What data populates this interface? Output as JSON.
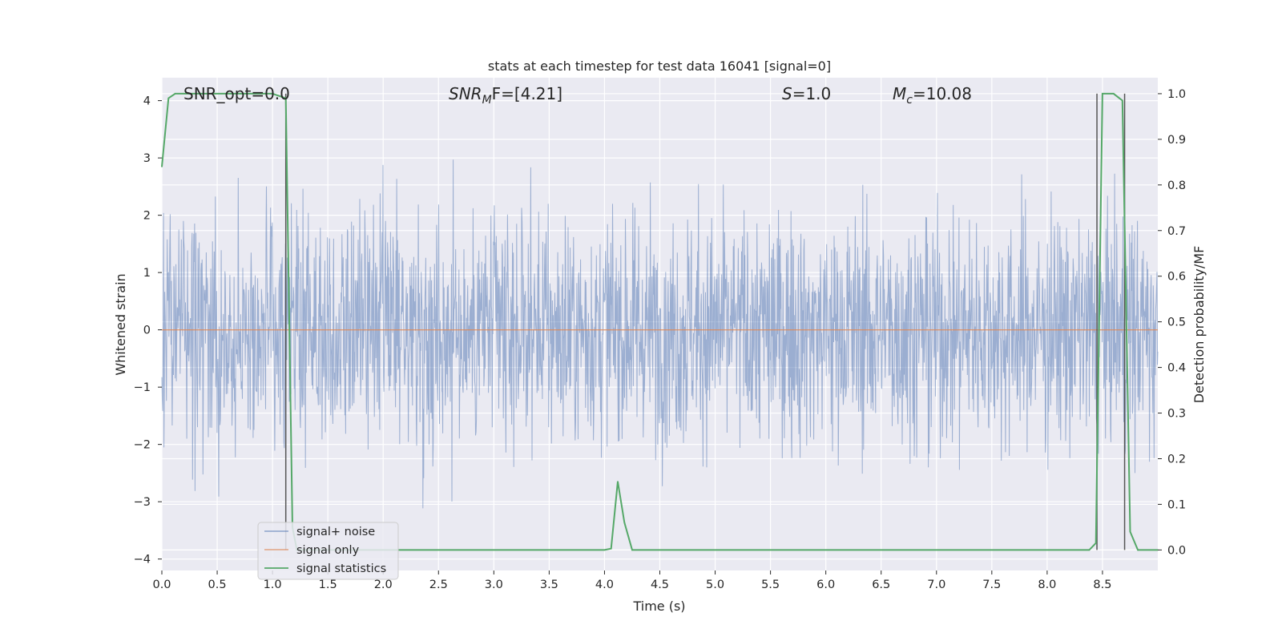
{
  "chart_data": {
    "type": "line",
    "title": "stats at each timestep for test data 16041 [signal=0]",
    "xlabel": "Time (s)",
    "ylabel": "Whitened strain",
    "y2label": "Detection probability/MF",
    "xlim": [
      0.0,
      9.0
    ],
    "ylim": [
      -4.2,
      4.4
    ],
    "y2lim": [
      -0.045,
      1.035
    ],
    "xticks": [
      "0.0",
      "0.5",
      "1.0",
      "1.5",
      "2.0",
      "2.5",
      "3.0",
      "3.5",
      "4.0",
      "4.5",
      "5.0",
      "5.5",
      "6.0",
      "6.5",
      "7.0",
      "7.5",
      "8.0",
      "8.5"
    ],
    "xtick_values": [
      0.0,
      0.5,
      1.0,
      1.5,
      2.0,
      2.5,
      3.0,
      3.5,
      4.0,
      4.5,
      5.0,
      5.5,
      6.0,
      6.5,
      7.0,
      7.5,
      8.0,
      8.5
    ],
    "yticks": [
      "−4",
      "−3",
      "−2",
      "−1",
      "0",
      "1",
      "2",
      "3",
      "4"
    ],
    "ytick_values": [
      -4,
      -3,
      -2,
      -1,
      0,
      1,
      2,
      3,
      4
    ],
    "y2ticks": [
      "0.0",
      "0.1",
      "0.2",
      "0.3",
      "0.4",
      "0.5",
      "0.6",
      "0.7",
      "0.8",
      "0.9",
      "1.0"
    ],
    "y2tick_values": [
      0.0,
      0.1,
      0.2,
      0.3,
      0.4,
      0.5,
      0.6,
      0.7,
      0.8,
      0.9,
      1.0
    ],
    "grid": true,
    "annotations": {
      "snr_opt": "SNR_opt=0.0",
      "snr_mf_main": "SNR",
      "snr_mf_sub": "M",
      "snr_mf_tail": "F=[4.21]",
      "s_main": "S",
      "s_tail": "=1.0",
      "mc_main": "M",
      "mc_sub": "c",
      "mc_tail": "=10.08"
    },
    "legend": {
      "position": "lower-left",
      "entries": [
        "signal+ noise",
        "signal only",
        "signal statistics"
      ]
    },
    "series": [
      {
        "name": "signal+ noise",
        "axis": "left",
        "color": "#4c72b0",
        "kind": "noise",
        "x_range": [
          0.0,
          9.0
        ],
        "y_range": [
          -3.65,
          4.0
        ]
      },
      {
        "name": "signal only",
        "axis": "left",
        "color": "#dd8452",
        "x": [
          0.0,
          9.0
        ],
        "y": [
          0.0,
          0.0
        ]
      },
      {
        "name": "signal statistics",
        "axis": "right",
        "color": "#55a868",
        "x": [
          0.0,
          0.06,
          0.12,
          1.0,
          1.12,
          1.18,
          1.22,
          4.0,
          4.06,
          4.12,
          4.18,
          4.25,
          8.38,
          8.44,
          8.5,
          8.6,
          8.68,
          8.75,
          8.82,
          9.0
        ],
        "y": [
          0.84,
          0.99,
          1.0,
          1.0,
          0.99,
          0.05,
          0.0,
          0.0,
          0.003,
          0.15,
          0.06,
          0.0,
          0.0,
          0.015,
          1.0,
          1.0,
          0.985,
          0.04,
          0.0,
          0.0
        ]
      }
    ],
    "vertical_lines": [
      {
        "x": 1.12,
        "y": [
          0.0,
          1.0
        ],
        "color": "#555555"
      },
      {
        "x": 8.45,
        "y": [
          0.0,
          1.0
        ],
        "color": "#555555"
      },
      {
        "x": 8.7,
        "y": [
          0.0,
          1.0
        ],
        "color": "#555555"
      }
    ]
  }
}
